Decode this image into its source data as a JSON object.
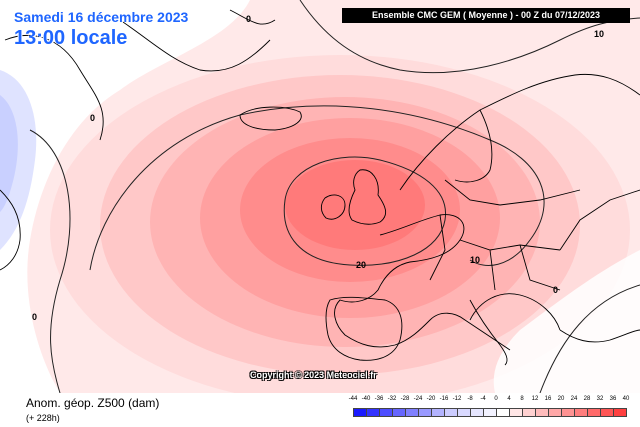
{
  "header": {
    "date": "Samedi 16 décembre 2023",
    "local_time": "13:00 locale",
    "model_run": "Ensemble CMC GEM  ( Moyenne )  - 00 Z du 07/12/2023"
  },
  "footer": {
    "copyright": "Copyright © 2023 Meteociel.fr",
    "variable": "Anom. géop. Z500 (dam)",
    "lead_time": "(+ 228h)"
  },
  "contour_labels": [
    "10",
    "0",
    "0",
    "20",
    "10",
    "0",
    "0"
  ],
  "legend": {
    "ticks": [
      "-44",
      "-40",
      "-36",
      "-32",
      "-28",
      "-24",
      "-20",
      "-16",
      "-12",
      "-8",
      "-4",
      "0",
      "4",
      "8",
      "12",
      "16",
      "20",
      "24",
      "28",
      "32",
      "36",
      "40"
    ],
    "colors": [
      "#1a1aff",
      "#3333ff",
      "#4d4dff",
      "#6666ff",
      "#8080ff",
      "#9999ff",
      "#b3b3ff",
      "#ccccff",
      "#d9d9ff",
      "#e6e6ff",
      "#f2f2ff",
      "#ffffff",
      "#ffe6e6",
      "#ffd1d1",
      "#ffbcbc",
      "#ffa8a8",
      "#ff9393",
      "#ff7e7e",
      "#ff6a6a",
      "#ff5555",
      "#ff4040"
    ]
  },
  "colors": {
    "title_blue": "#1f66ff",
    "coast": "#000000"
  }
}
